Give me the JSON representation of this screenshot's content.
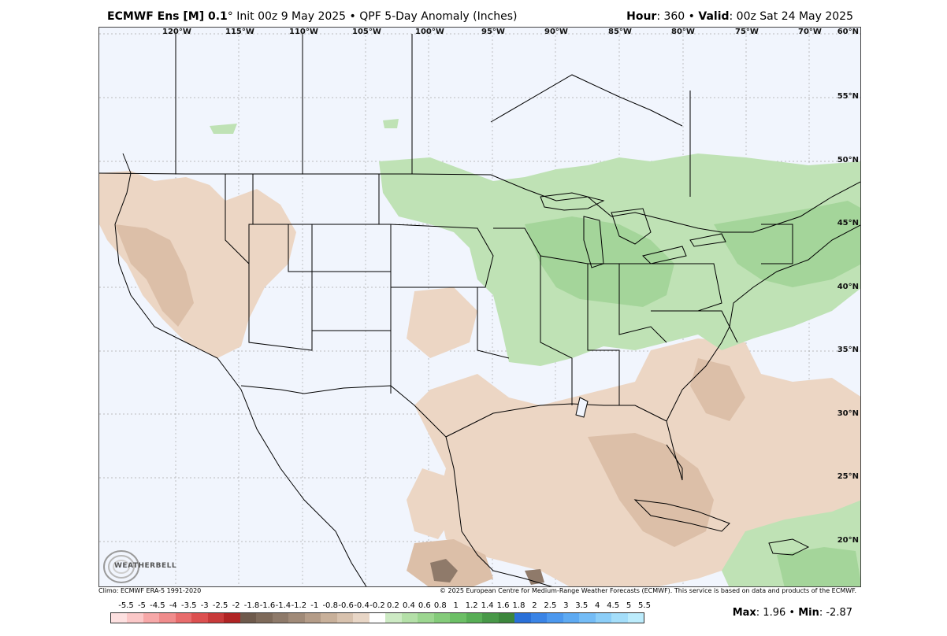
{
  "header": {
    "model": "ECMWF Ens [M] 0.1",
    "init": "° Init 00z 9 May 2025 • QPF 5-Day Anomaly (Inches)",
    "hour_label": "Hour",
    "hour_value": ": 360 • ",
    "valid_label": "Valid",
    "valid_value": ": 00z Sat 24 May 2025"
  },
  "map": {
    "longitude_labels": [
      "120°W",
      "115°W",
      "110°W",
      "105°W",
      "100°W",
      "95°W",
      "90°W",
      "85°W",
      "80°W",
      "75°W",
      "70°W"
    ],
    "latitude_labels": [
      "60°N",
      "55°N",
      "50°N",
      "45°N",
      "40°N",
      "35°N",
      "30°N",
      "25°N",
      "20°N"
    ],
    "colors": {
      "background": "#f1f5fd",
      "dry_light": "#ecd6c4",
      "dry_mid": "#dcbfa8",
      "dry_dark": "#8f7a6a",
      "wet_light": "#bfe2b5",
      "wet_mid": "#a4d59a",
      "borders": "#000000"
    }
  },
  "footer": {
    "climo": "Climo: ECMWF ERA-5 1991-2020",
    "copyright": "© 2025 European Centre for Medium-Range Weather Forecasts (ECMWF). This service is based on data and products of the ECMWF."
  },
  "colorbar": {
    "ticks": [
      "-5.5",
      "-5",
      "-4.5",
      "-4",
      "-3.5",
      "-3",
      "-2.5",
      "-2",
      "-1.8",
      "-1.6",
      "-1.4",
      "-1.2",
      "-1",
      "-0.8",
      "-0.6",
      "-0.4",
      "-0.2",
      "0.2",
      "0.4",
      "0.6",
      "0.8",
      "1",
      "1.2",
      "1.4",
      "1.6",
      "1.8",
      "2",
      "2.5",
      "3",
      "3.5",
      "4",
      "4.5",
      "5",
      "5.5"
    ],
    "colors": [
      "#fde0e0",
      "#fbc8c8",
      "#f7a8a8",
      "#f08c8c",
      "#e86c6c",
      "#dc5050",
      "#c83a3a",
      "#b02424",
      "#6e5a4c",
      "#7e6a5a",
      "#8e7a6a",
      "#a08a78",
      "#b49c88",
      "#c8b09a",
      "#d8c2ae",
      "#e8d6c6",
      "#ffffff",
      "#cdeac4",
      "#b4e0a8",
      "#9cd690",
      "#84cb7a",
      "#6cbf66",
      "#58ae56",
      "#489848",
      "#3c863c",
      "#2a70d8",
      "#3a84e6",
      "#4c98ee",
      "#5eaaf2",
      "#74bcf6",
      "#8ccef8",
      "#a4defa",
      "#bcecfc"
    ],
    "max_label": "Max",
    "max_value": ": 1.96 • ",
    "min_label": "Min",
    "min_value": ": -2.87"
  },
  "logo": {
    "text": "WEATHERBELL"
  }
}
